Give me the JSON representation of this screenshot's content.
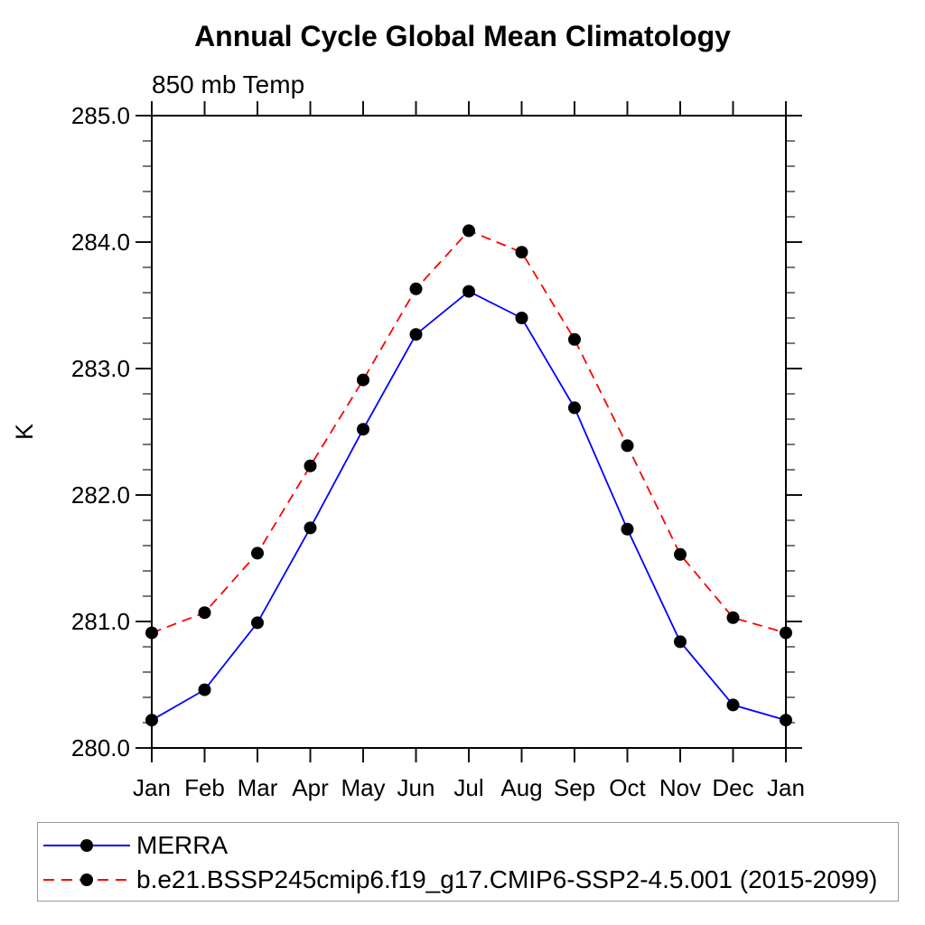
{
  "page": {
    "title": "Annual Cycle Global Mean Climatology",
    "subtitle": "850 mb Temp"
  },
  "y_axis": {
    "label": "K",
    "tick_labels": [
      "280.0",
      "281.0",
      "282.0",
      "283.0",
      "284.0",
      "285.0"
    ]
  },
  "x_axis": {
    "tick_labels": [
      "Jan",
      "Feb",
      "Mar",
      "Apr",
      "May",
      "Jun",
      "Jul",
      "Aug",
      "Sep",
      "Oct",
      "Nov",
      "Dec",
      "Jan"
    ]
  },
  "legend": {
    "entries": [
      {
        "label": "MERRA",
        "color": "#0000ff",
        "style": "solid",
        "marker": "circle"
      },
      {
        "label": "b.e21.BSSP245cmip6.f19_g17.CMIP6-SSP2-4.5.001 (2015-2099)",
        "color": "#ff0000",
        "style": "dashed",
        "marker": "circle"
      }
    ]
  },
  "chart_data": {
    "type": "line",
    "title": "Annual Cycle Global Mean Climatology",
    "subtitle": "850 mb Temp",
    "xlabel": "",
    "ylabel": "K",
    "categories": [
      "Jan",
      "Feb",
      "Mar",
      "Apr",
      "May",
      "Jun",
      "Jul",
      "Aug",
      "Sep",
      "Oct",
      "Nov",
      "Dec",
      "Jan"
    ],
    "series": [
      {
        "name": "MERRA",
        "color": "#0000ff",
        "line_style": "solid",
        "marker": "circle",
        "marker_color": "#000000",
        "values": [
          280.22,
          280.46,
          280.99,
          281.74,
          282.52,
          283.27,
          283.61,
          283.4,
          282.69,
          281.73,
          280.84,
          280.34,
          280.22
        ]
      },
      {
        "name": "b.e21.BSSP245cmip6.f19_g17.CMIP6-SSP2-4.5.001 (2015-2099)",
        "color": "#ff0000",
        "line_style": "dashed",
        "marker": "circle",
        "marker_color": "#000000",
        "values": [
          280.91,
          281.07,
          281.54,
          282.23,
          282.91,
          283.63,
          284.09,
          283.92,
          283.23,
          282.39,
          281.53,
          281.03,
          280.91
        ]
      }
    ],
    "ylim": [
      280.0,
      285.0
    ],
    "y_major_step": 1.0,
    "y_minor_step": 0.2,
    "grid": false,
    "legend_position": "bottom"
  }
}
